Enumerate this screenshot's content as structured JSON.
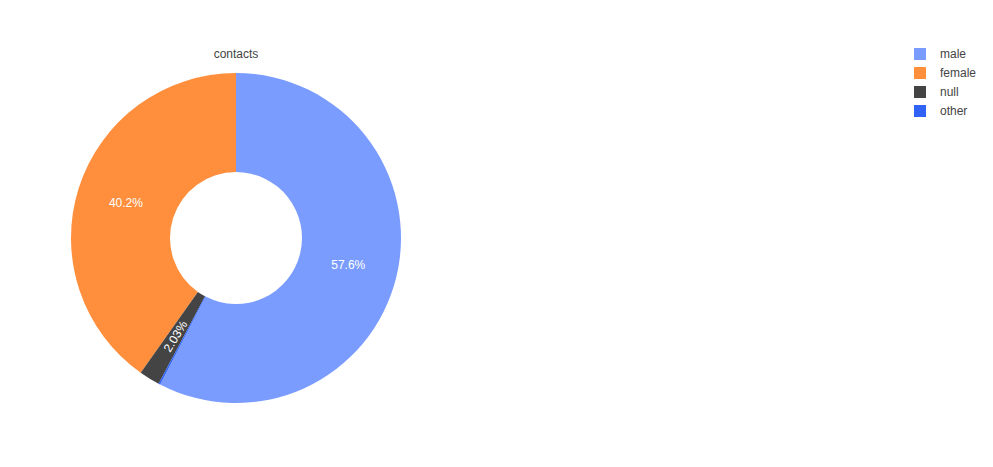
{
  "chart_data": {
    "type": "pie",
    "title": "contacts",
    "categories": [
      "male",
      "female",
      "null",
      "other"
    ],
    "values": [
      57.6,
      40.2,
      2.03,
      0.17
    ],
    "value_labels": [
      "57.6%",
      "40.2%",
      "2.03%",
      null
    ],
    "colors": [
      "#7a9cff",
      "#ff8f3d",
      "#444444",
      "#2f62f5"
    ],
    "data_labels": true,
    "legend": "upper right"
  }
}
